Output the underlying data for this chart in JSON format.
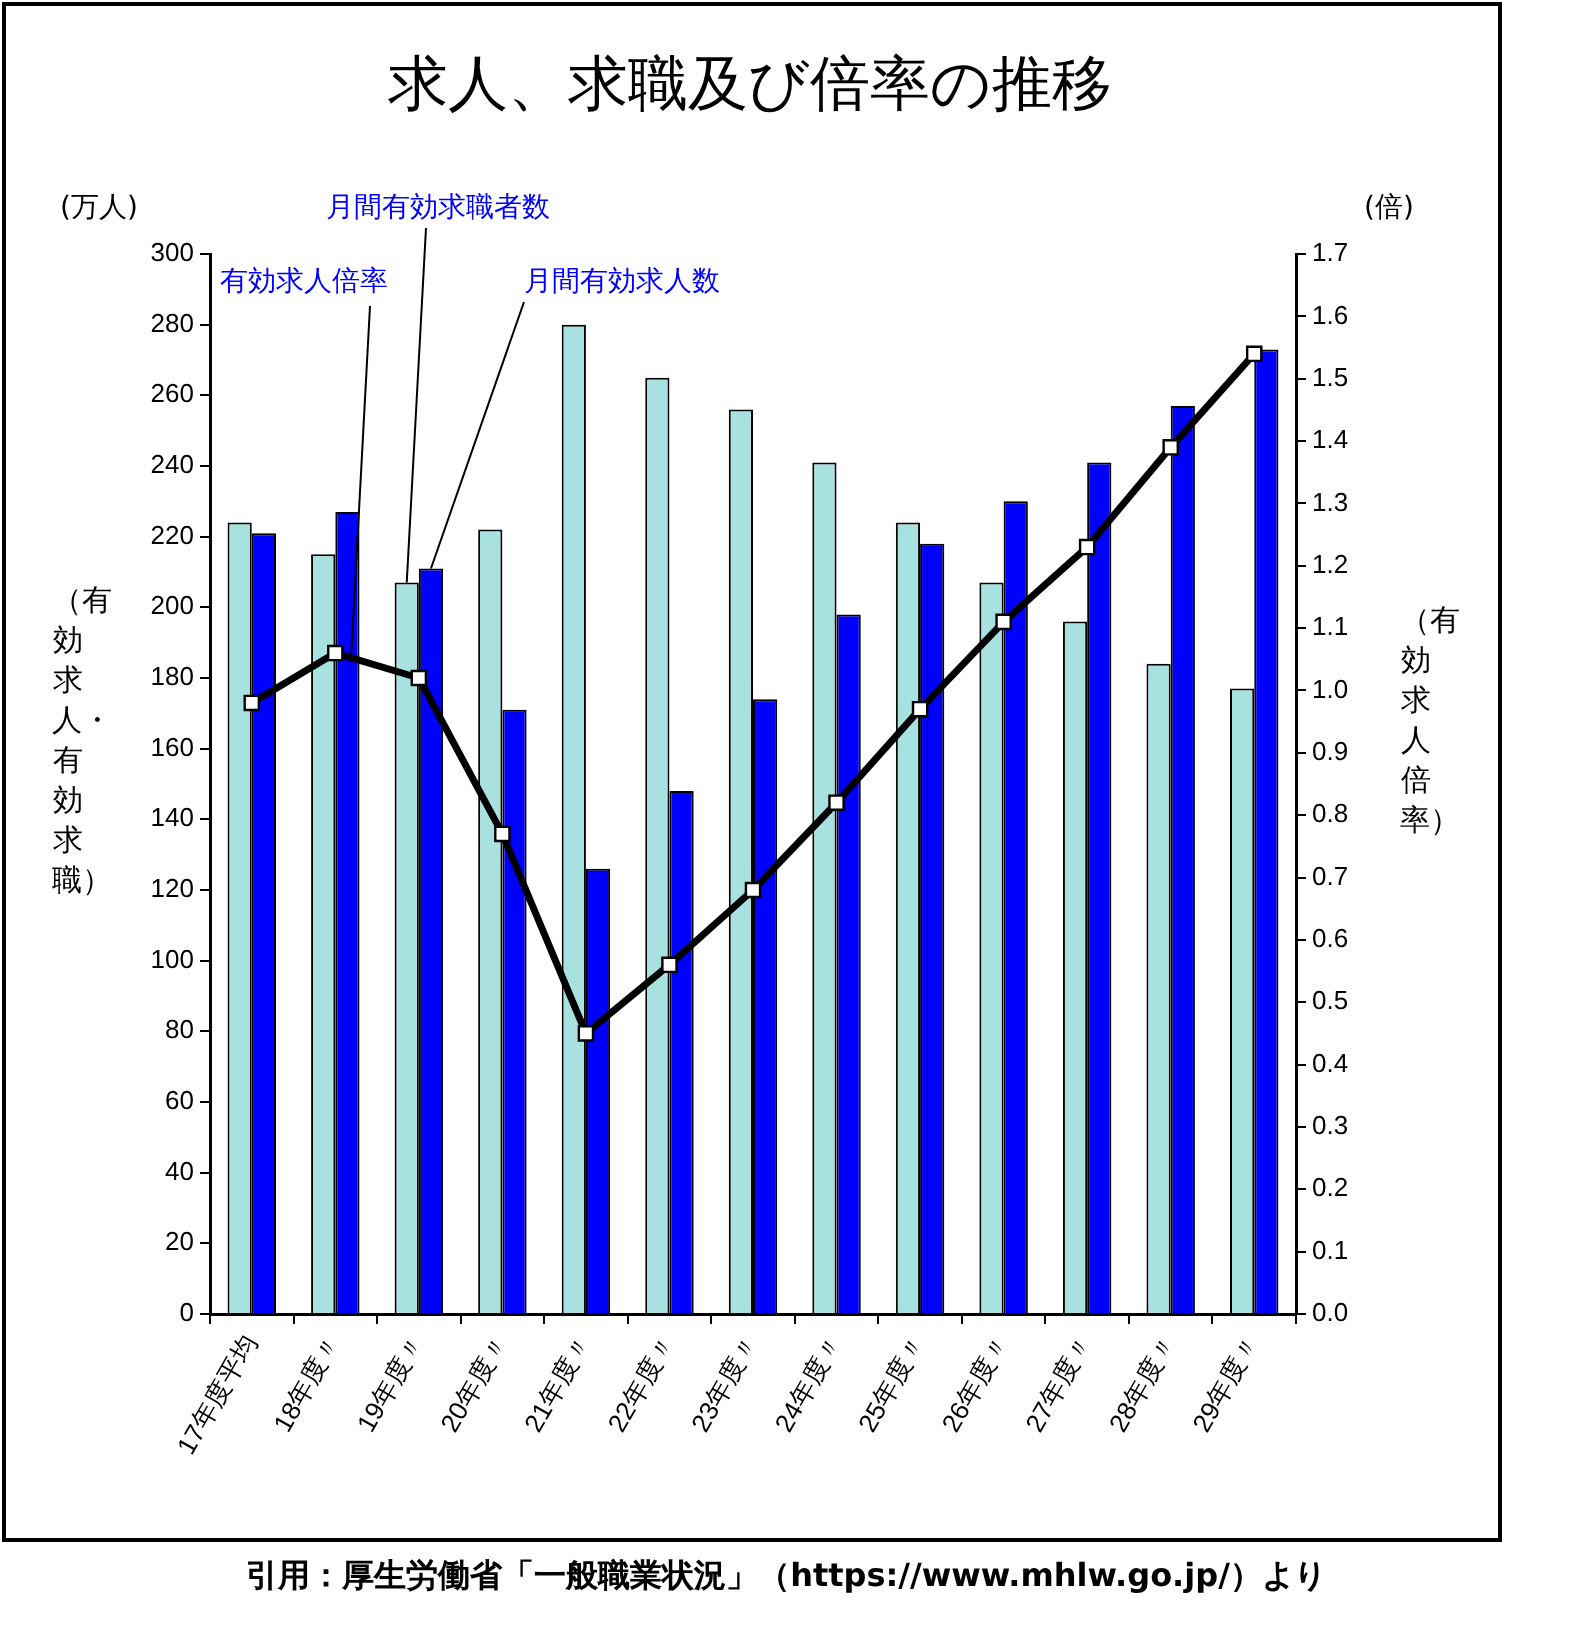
{
  "chart_data": {
    "type": "bar",
    "title": "求人、求職及び倍率の推移",
    "ylabel": "（有効求人・有効求職）",
    "y2label": "（有効求人倍率）",
    "annotations": [
      "(万人)",
      "(倍)",
      "引用：厚生労働省「一般職業状況」（https://www.mhlw.go.jp/）より"
    ],
    "categories": [
      "17年度平均",
      "18年度〃",
      "19年度〃",
      "20年度〃",
      "21年度〃",
      "22年度〃",
      "23年度〃",
      "24年度〃",
      "25年度〃",
      "26年度〃",
      "27年度〃",
      "28年度〃",
      "29年度〃"
    ],
    "series": [
      {
        "name": "月間有効求職者数",
        "color": "#a8e2e0",
        "values": [
          224,
          215,
          207,
          222,
          280,
          265,
          256,
          241,
          224,
          207,
          196,
          184,
          177
        ]
      },
      {
        "name": "月間有効求人数",
        "color": "#0000ff",
        "values": [
          221,
          227,
          211,
          171,
          126,
          148,
          174,
          198,
          218,
          230,
          241,
          257,
          273
        ]
      },
      {
        "name": "有効求人倍率",
        "type": "line",
        "axis": "y2",
        "color": "#000000",
        "marker": "square",
        "values": [
          0.98,
          1.06,
          1.02,
          0.77,
          0.45,
          0.56,
          0.68,
          0.82,
          0.97,
          1.11,
          1.23,
          1.39,
          1.54
        ]
      }
    ],
    "ylim": [
      0,
      300
    ],
    "yticks": [
      0,
      20,
      40,
      60,
      80,
      100,
      120,
      140,
      160,
      180,
      200,
      220,
      240,
      260,
      280,
      300
    ],
    "y2lim": [
      0,
      1.7
    ],
    "y2ticks": [
      {
        "value": 0,
        "label": "0.0"
      },
      0.1,
      0.2,
      0.3,
      0.4,
      0.5,
      0.6,
      0.7,
      0.8,
      0.9,
      {
        "value": 1,
        "label": "1.0"
      },
      1.1,
      1.2,
      1.3,
      1.4,
      1.5,
      1.6,
      1.7
    ],
    "grid": false
  }
}
